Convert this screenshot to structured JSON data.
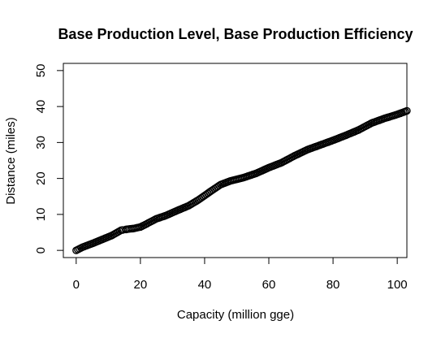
{
  "chart_data": {
    "type": "scatter",
    "title": "Base Production Level, Base Production Efficiency",
    "xlabel": "Capacity (million gge)",
    "ylabel": "Distance (miles)",
    "xlim": [
      -4,
      103
    ],
    "ylim": [
      -2,
      52
    ],
    "xticks": [
      0,
      20,
      40,
      60,
      80,
      100
    ],
    "yticks": [
      0,
      10,
      20,
      30,
      40,
      50
    ],
    "grid": false,
    "legend": "none",
    "marker": "open-circle",
    "color": "#000000",
    "curve_points": [
      [
        0,
        0
      ],
      [
        2,
        0.9
      ],
      [
        5,
        1.9
      ],
      [
        8,
        3.0
      ],
      [
        11,
        4.1
      ],
      [
        14,
        5.6
      ],
      [
        16,
        5.9
      ],
      [
        18,
        6.1
      ],
      [
        20,
        6.5
      ],
      [
        22,
        7.4
      ],
      [
        25,
        8.8
      ],
      [
        28,
        9.7
      ],
      [
        31,
        10.9
      ],
      [
        35,
        12.4
      ],
      [
        38,
        14.0
      ],
      [
        42,
        16.5
      ],
      [
        45,
        18.3
      ],
      [
        48,
        19.3
      ],
      [
        52,
        20.2
      ],
      [
        56,
        21.4
      ],
      [
        60,
        23.0
      ],
      [
        64,
        24.4
      ],
      [
        68,
        26.3
      ],
      [
        72,
        28.0
      ],
      [
        76,
        29.3
      ],
      [
        80,
        30.6
      ],
      [
        84,
        32.0
      ],
      [
        88,
        33.5
      ],
      [
        92,
        35.4
      ],
      [
        96,
        36.7
      ],
      [
        100,
        37.8
      ],
      [
        103,
        38.8
      ]
    ],
    "gaps": [
      [
        14.5,
        15.5
      ]
    ],
    "step": 0.5
  }
}
